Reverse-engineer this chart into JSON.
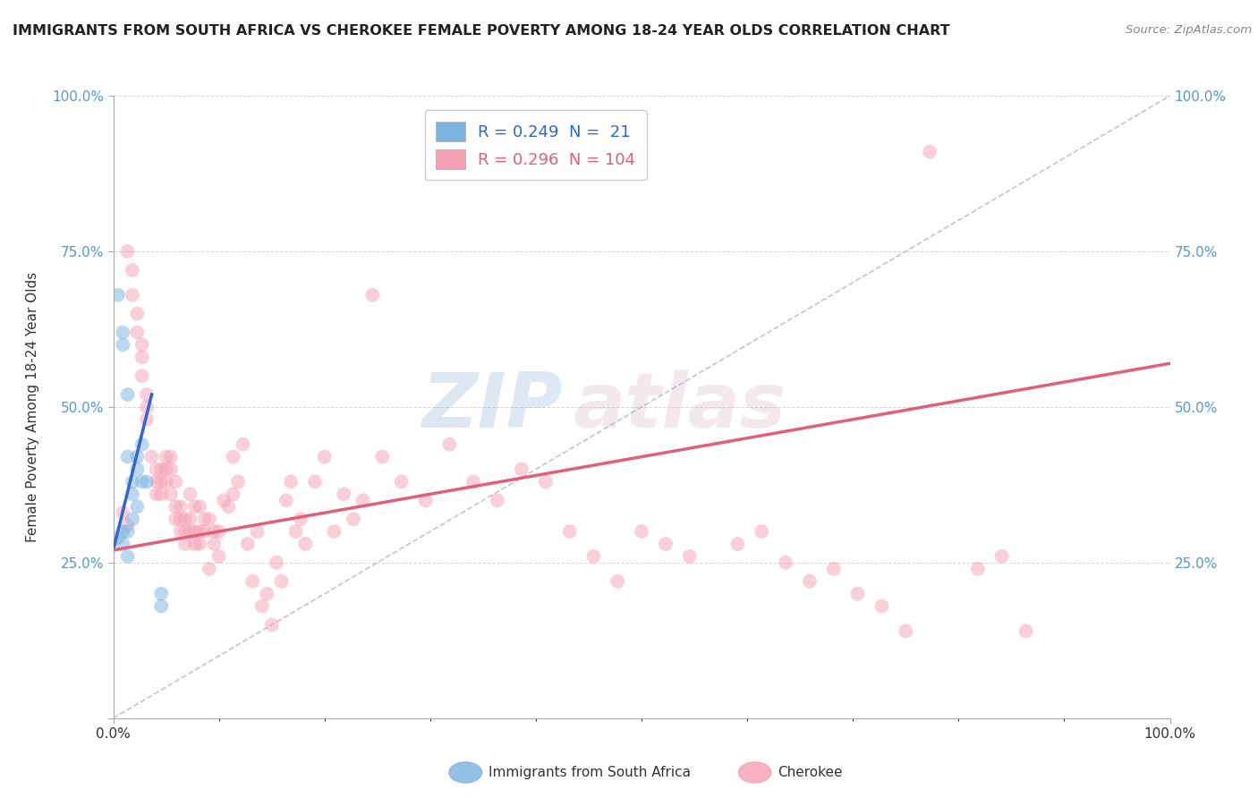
{
  "title": "IMMIGRANTS FROM SOUTH AFRICA VS CHEROKEE FEMALE POVERTY AMONG 18-24 YEAR OLDS CORRELATION CHART",
  "source": "Source: ZipAtlas.com",
  "ylabel": "Female Poverty Among 18-24 Year Olds",
  "xlim": [
    0,
    0.22
  ],
  "ylim": [
    0,
    1.0
  ],
  "legend_r1": "R = 0.249",
  "legend_n1": "21",
  "legend_r2": "R = 0.296",
  "legend_n2": "104",
  "blue_scatter": [
    [
      0.001,
      0.29
    ],
    [
      0.002,
      0.3
    ],
    [
      0.002,
      0.28
    ],
    [
      0.003,
      0.3
    ],
    [
      0.003,
      0.26
    ],
    [
      0.003,
      0.42
    ],
    [
      0.004,
      0.38
    ],
    [
      0.004,
      0.36
    ],
    [
      0.004,
      0.32
    ],
    [
      0.005,
      0.42
    ],
    [
      0.005,
      0.4
    ],
    [
      0.005,
      0.34
    ],
    [
      0.006,
      0.38
    ],
    [
      0.006,
      0.44
    ],
    [
      0.007,
      0.38
    ],
    [
      0.001,
      0.68
    ],
    [
      0.002,
      0.62
    ],
    [
      0.002,
      0.6
    ],
    [
      0.003,
      0.52
    ],
    [
      0.01,
      0.2
    ],
    [
      0.01,
      0.18
    ]
  ],
  "pink_scatter": [
    [
      0.002,
      0.33
    ],
    [
      0.003,
      0.31
    ],
    [
      0.003,
      0.75
    ],
    [
      0.004,
      0.72
    ],
    [
      0.004,
      0.68
    ],
    [
      0.005,
      0.65
    ],
    [
      0.005,
      0.62
    ],
    [
      0.006,
      0.6
    ],
    [
      0.006,
      0.58
    ],
    [
      0.006,
      0.55
    ],
    [
      0.007,
      0.52
    ],
    [
      0.007,
      0.5
    ],
    [
      0.007,
      0.48
    ],
    [
      0.008,
      0.42
    ],
    [
      0.009,
      0.4
    ],
    [
      0.009,
      0.38
    ],
    [
      0.009,
      0.36
    ],
    [
      0.01,
      0.4
    ],
    [
      0.01,
      0.38
    ],
    [
      0.01,
      0.36
    ],
    [
      0.011,
      0.42
    ],
    [
      0.011,
      0.4
    ],
    [
      0.011,
      0.38
    ],
    [
      0.012,
      0.42
    ],
    [
      0.012,
      0.4
    ],
    [
      0.012,
      0.36
    ],
    [
      0.013,
      0.34
    ],
    [
      0.013,
      0.32
    ],
    [
      0.013,
      0.38
    ],
    [
      0.014,
      0.34
    ],
    [
      0.014,
      0.32
    ],
    [
      0.014,
      0.3
    ],
    [
      0.015,
      0.32
    ],
    [
      0.015,
      0.3
    ],
    [
      0.015,
      0.28
    ],
    [
      0.016,
      0.3
    ],
    [
      0.016,
      0.32
    ],
    [
      0.016,
      0.36
    ],
    [
      0.017,
      0.34
    ],
    [
      0.017,
      0.3
    ],
    [
      0.017,
      0.28
    ],
    [
      0.018,
      0.34
    ],
    [
      0.018,
      0.3
    ],
    [
      0.018,
      0.28
    ],
    [
      0.019,
      0.3
    ],
    [
      0.019,
      0.32
    ],
    [
      0.02,
      0.32
    ],
    [
      0.02,
      0.24
    ],
    [
      0.021,
      0.28
    ],
    [
      0.021,
      0.3
    ],
    [
      0.022,
      0.26
    ],
    [
      0.022,
      0.3
    ],
    [
      0.023,
      0.35
    ],
    [
      0.024,
      0.34
    ],
    [
      0.025,
      0.42
    ],
    [
      0.025,
      0.36
    ],
    [
      0.026,
      0.38
    ],
    [
      0.027,
      0.44
    ],
    [
      0.028,
      0.28
    ],
    [
      0.029,
      0.22
    ],
    [
      0.03,
      0.3
    ],
    [
      0.031,
      0.18
    ],
    [
      0.032,
      0.2
    ],
    [
      0.033,
      0.15
    ],
    [
      0.034,
      0.25
    ],
    [
      0.035,
      0.22
    ],
    [
      0.036,
      0.35
    ],
    [
      0.037,
      0.38
    ],
    [
      0.038,
      0.3
    ],
    [
      0.039,
      0.32
    ],
    [
      0.04,
      0.28
    ],
    [
      0.042,
      0.38
    ],
    [
      0.044,
      0.42
    ],
    [
      0.046,
      0.3
    ],
    [
      0.048,
      0.36
    ],
    [
      0.05,
      0.32
    ],
    [
      0.052,
      0.35
    ],
    [
      0.054,
      0.68
    ],
    [
      0.056,
      0.42
    ],
    [
      0.06,
      0.38
    ],
    [
      0.065,
      0.35
    ],
    [
      0.07,
      0.44
    ],
    [
      0.075,
      0.38
    ],
    [
      0.08,
      0.35
    ],
    [
      0.085,
      0.4
    ],
    [
      0.09,
      0.38
    ],
    [
      0.095,
      0.3
    ],
    [
      0.1,
      0.26
    ],
    [
      0.105,
      0.22
    ],
    [
      0.11,
      0.3
    ],
    [
      0.115,
      0.28
    ],
    [
      0.12,
      0.26
    ],
    [
      0.13,
      0.28
    ],
    [
      0.135,
      0.3
    ],
    [
      0.14,
      0.25
    ],
    [
      0.145,
      0.22
    ],
    [
      0.15,
      0.24
    ],
    [
      0.155,
      0.2
    ],
    [
      0.16,
      0.18
    ],
    [
      0.165,
      0.14
    ],
    [
      0.17,
      0.91
    ],
    [
      0.18,
      0.24
    ],
    [
      0.185,
      0.26
    ],
    [
      0.19,
      0.14
    ]
  ],
  "blue_line_x": [
    0.0,
    0.008
  ],
  "blue_line_y": [
    0.27,
    0.52
  ],
  "pink_line_x": [
    0.0,
    0.22
  ],
  "pink_line_y": [
    0.27,
    0.57
  ],
  "dashed_line_x": [
    0.0,
    0.22
  ],
  "dashed_line_y": [
    0.0,
    1.0
  ],
  "scatter_size": 130,
  "scatter_alpha": 0.5,
  "background_color": "#ffffff",
  "plot_bg_color": "#ffffff",
  "grid_color": "#cccccc",
  "blue_color": "#7ab3e0",
  "blue_line_color": "#3366cc",
  "pink_color": "#f5a0b5",
  "pink_line_color": "#e0607a",
  "dashed_color": "#aaaacc",
  "watermark_zip": "ZIP",
  "watermark_atlas": "atlas",
  "label_bottom_left": "Immigrants from South Africa",
  "label_bottom_right": "Cherokee"
}
